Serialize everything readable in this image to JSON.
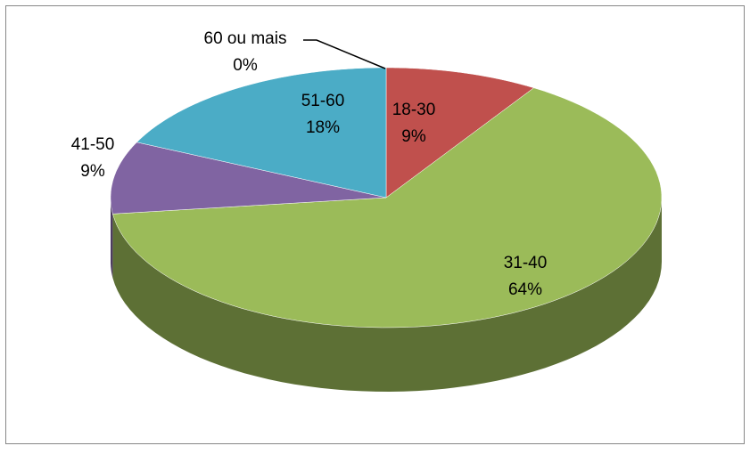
{
  "chart_data": {
    "type": "pie3d",
    "categories": [
      "18-30",
      "31-40",
      "41-50",
      "51-60",
      "60 ou mais"
    ],
    "values": [
      9,
      64,
      9,
      18,
      0
    ],
    "value_labels": [
      "9%",
      "64%",
      "9%",
      "18%",
      "0%"
    ],
    "colors": [
      "#c0504d",
      "#9bbb59",
      "#8064a2",
      "#4bacc6",
      "#f79646"
    ]
  }
}
